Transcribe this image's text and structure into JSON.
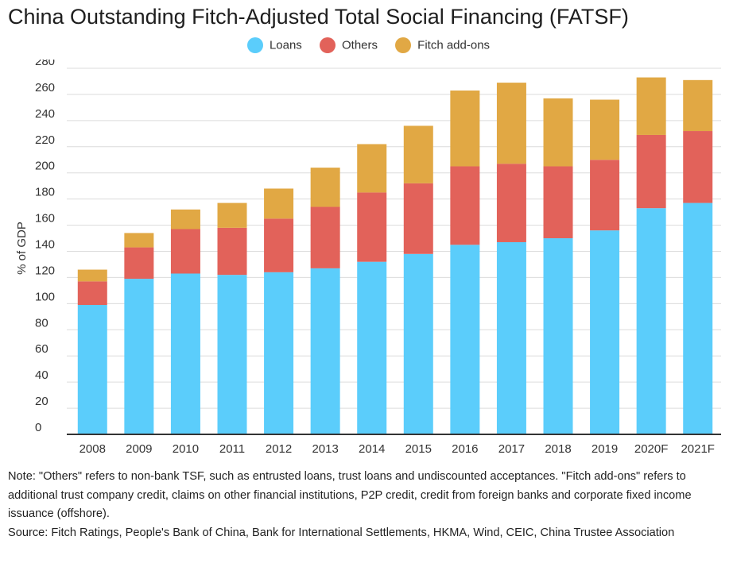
{
  "title": "China Outstanding Fitch-Adjusted Total Social Financing (FATSF)",
  "note": "Note: \"Others\" refers to  non-bank TSF, such as entrusted loans, trust loans and undiscounted acceptances. \"Fitch add-ons\" refers to additional trust company credit, claims on other financial institutions, P2P credit, credit from foreign banks and corporate fixed income issuance (offshore).",
  "source": "Source:  Fitch Ratings, People's Bank of China, Bank for International Settlements,  HKMA, Wind,  CEIC, China Trustee Association",
  "colors": {
    "loans": "#5bcdfb",
    "others": "#e2625a",
    "addons": "#e1a844",
    "grid": "#dcdcdc",
    "axis": "#333333"
  },
  "chart_data": {
    "type": "bar",
    "stacked": true,
    "title": "China Outstanding Fitch-Adjusted Total Social Financing (FATSF)",
    "xlabel": "",
    "ylabel": "% of GDP",
    "ylim": [
      0,
      280
    ],
    "yticks": [
      0,
      20,
      40,
      60,
      80,
      100,
      120,
      140,
      160,
      180,
      200,
      220,
      240,
      260,
      280
    ],
    "grid": true,
    "legend_position": "top-center",
    "categories": [
      "2008",
      "2009",
      "2010",
      "2011",
      "2012",
      "2013",
      "2014",
      "2015",
      "2016",
      "2017",
      "2018",
      "2019",
      "2020F",
      "2021F"
    ],
    "series": [
      {
        "name": "Loans",
        "color": "#5bcdfb",
        "values": [
          99,
          119,
          123,
          122,
          124,
          127,
          132,
          138,
          145,
          147,
          150,
          156,
          173,
          177
        ]
      },
      {
        "name": "Others",
        "color": "#e2625a",
        "values": [
          18,
          24,
          34,
          36,
          41,
          47,
          53,
          54,
          60,
          60,
          55,
          54,
          56,
          55
        ]
      },
      {
        "name": "Fitch add-ons",
        "color": "#e1a844",
        "values": [
          9,
          11,
          15,
          19,
          23,
          30,
          37,
          44,
          58,
          62,
          52,
          46,
          44,
          39
        ]
      }
    ]
  }
}
